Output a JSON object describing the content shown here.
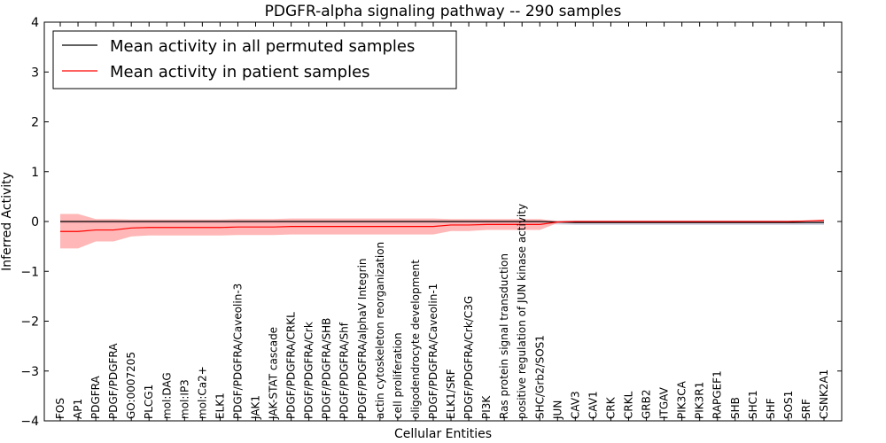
{
  "chart_data": {
    "type": "line",
    "title": "PDGFR-alpha signaling pathway -- 290 samples",
    "xlabel": "Cellular Entities",
    "ylabel": "Inferred Activity",
    "ylim": [
      -4,
      4
    ],
    "yticks": [
      "−4",
      "−3",
      "−2",
      "−1",
      "0",
      "1",
      "2",
      "3",
      "4"
    ],
    "legend_position": "top-left",
    "colors": {
      "permuted": "#000000",
      "patient": "#ff0000",
      "patient_band": "#ff9999",
      "permuted_band": "#c8c8d8"
    },
    "categories": [
      "FOS",
      "AP1",
      "PDGFRA",
      "PDGF/PDGFRA",
      "GO:0007205",
      "PLCG1",
      "mol:DAG",
      "mol:IP3",
      "mol:Ca2+",
      "ELK1",
      "PDGF/PDGFRA/Caveolin-3",
      "JAK1",
      "JAK-STAT cascade",
      "PDGF/PDGFRA/CRKL",
      "PDGF/PDGFRA/Crk",
      "PDGF/PDGFRA/SHB",
      "PDGF/PDGFRA/Shf",
      "PDGF/PDGFRA/alphaV Integrin",
      "actin cytoskeleton reorganization",
      "cell proliferation",
      "oligodendrocyte development",
      "PDGF/PDGFRA/Caveolin-1",
      "ELK1/SRF",
      "PDGF/PDGFRA/Crk/C3G",
      "PI3K",
      "Ras protein signal transduction",
      "positive regulation of JUN kinase activity",
      "SHC/Grb2/SOS1",
      "JUN",
      "CAV3",
      "CAV1",
      "CRK",
      "CRKL",
      "GRB2",
      "ITGAV",
      "PIK3CA",
      "PIK3R1",
      "RAPGEF1",
      "SHB",
      "SHC1",
      "SHF",
      "SOS1",
      "SRF",
      "CSNK2A1"
    ],
    "series": [
      {
        "name": "Mean activity in all permuted samples",
        "values": [
          0,
          0,
          0,
          0,
          0,
          0,
          0,
          0,
          0,
          0,
          0,
          0,
          0,
          0,
          0,
          0,
          0,
          0,
          0,
          0,
          0,
          0,
          0,
          0,
          0,
          0,
          0,
          0,
          -0.01,
          -0.02,
          -0.02,
          -0.02,
          -0.02,
          -0.02,
          -0.02,
          -0.02,
          -0.02,
          -0.02,
          -0.02,
          -0.02,
          -0.02,
          -0.02,
          -0.02,
          -0.02
        ],
        "band_upper": [
          0.02,
          0.02,
          0.02,
          0.02,
          0.02,
          0.02,
          0.02,
          0.02,
          0.02,
          0.02,
          0.02,
          0.02,
          0.02,
          0.02,
          0.02,
          0.02,
          0.02,
          0.02,
          0.02,
          0.02,
          0.02,
          0.02,
          0.02,
          0.02,
          0.02,
          0.02,
          0.02,
          0.02,
          0.02,
          0.02,
          0.02,
          0.02,
          0.02,
          0.02,
          0.02,
          0.02,
          0.02,
          0.02,
          0.02,
          0.02,
          0.02,
          0.02,
          0.02,
          0.02
        ],
        "band_lower": [
          -0.04,
          -0.04,
          -0.04,
          -0.04,
          -0.04,
          -0.04,
          -0.04,
          -0.04,
          -0.04,
          -0.04,
          -0.04,
          -0.04,
          -0.04,
          -0.04,
          -0.04,
          -0.04,
          -0.04,
          -0.04,
          -0.04,
          -0.04,
          -0.04,
          -0.04,
          -0.04,
          -0.04,
          -0.04,
          -0.04,
          -0.04,
          -0.04,
          -0.06,
          -0.07,
          -0.07,
          -0.07,
          -0.07,
          -0.07,
          -0.07,
          -0.07,
          -0.07,
          -0.07,
          -0.07,
          -0.07,
          -0.07,
          -0.07,
          -0.07,
          -0.07
        ]
      },
      {
        "name": "Mean activity in patient samples",
        "values": [
          -0.2,
          -0.2,
          -0.17,
          -0.17,
          -0.13,
          -0.12,
          -0.12,
          -0.12,
          -0.12,
          -0.12,
          -0.11,
          -0.11,
          -0.11,
          -0.1,
          -0.1,
          -0.1,
          -0.1,
          -0.1,
          -0.1,
          -0.1,
          -0.1,
          -0.1,
          -0.07,
          -0.07,
          -0.06,
          -0.06,
          -0.06,
          -0.06,
          -0.01,
          0,
          0,
          0,
          0,
          0,
          0,
          0,
          0,
          0,
          0,
          0,
          0,
          0,
          0.01,
          0.02
        ],
        "band_upper": [
          0.15,
          0.15,
          0.05,
          0.05,
          0.04,
          0.04,
          0.04,
          0.04,
          0.04,
          0.04,
          0.05,
          0.05,
          0.05,
          0.06,
          0.06,
          0.06,
          0.06,
          0.06,
          0.06,
          0.06,
          0.06,
          0.06,
          0.05,
          0.05,
          0.05,
          0.05,
          0.05,
          0.05,
          0.01,
          0.01,
          0.01,
          0.01,
          0.01,
          0.01,
          0.01,
          0.01,
          0.01,
          0.01,
          0.01,
          0.01,
          0.01,
          0.01,
          0.02,
          0.04
        ],
        "band_lower": [
          -0.54,
          -0.54,
          -0.4,
          -0.4,
          -0.3,
          -0.28,
          -0.28,
          -0.28,
          -0.28,
          -0.28,
          -0.27,
          -0.27,
          -0.27,
          -0.26,
          -0.26,
          -0.26,
          -0.26,
          -0.26,
          -0.26,
          -0.26,
          -0.26,
          -0.26,
          -0.19,
          -0.19,
          -0.17,
          -0.17,
          -0.17,
          -0.17,
          -0.03,
          -0.01,
          -0.01,
          -0.01,
          -0.01,
          -0.01,
          -0.01,
          -0.01,
          -0.01,
          -0.01,
          -0.01,
          -0.01,
          -0.01,
          -0.01,
          0,
          0
        ]
      }
    ]
  }
}
